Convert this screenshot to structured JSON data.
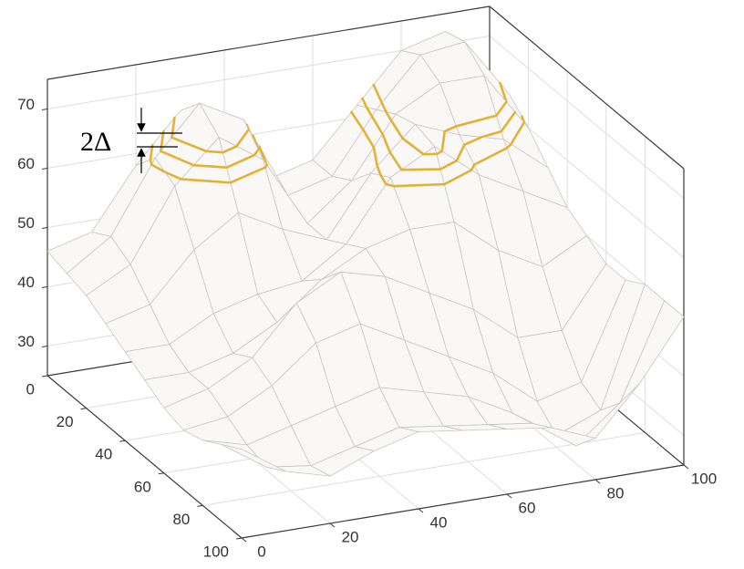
{
  "chart_data": {
    "type": "surface",
    "annotation": "2Δ",
    "x": [
      0,
      10,
      20,
      30,
      40,
      50,
      60,
      70,
      80,
      90,
      100
    ],
    "y": [
      0,
      10,
      20,
      30,
      40,
      50,
      60,
      70,
      80,
      90,
      100
    ],
    "z": [
      [
        46,
        48,
        58,
        66,
        64,
        52,
        54,
        62,
        70,
        72,
        62
      ],
      [
        45,
        50,
        62,
        70,
        66,
        52,
        54,
        64,
        72,
        73,
        63
      ],
      [
        44,
        48,
        60,
        67,
        62,
        50,
        56,
        66,
        70,
        70,
        60
      ],
      [
        42,
        44,
        52,
        57,
        53,
        50,
        60,
        67,
        64,
        62,
        56
      ],
      [
        40,
        40,
        44,
        46,
        47,
        52,
        62,
        66,
        60,
        56,
        52
      ],
      [
        38,
        38,
        40,
        44,
        50,
        54,
        56,
        56,
        50,
        46,
        50
      ],
      [
        36,
        38,
        42,
        50,
        54,
        52,
        48,
        44,
        38,
        38,
        48
      ],
      [
        35,
        36,
        40,
        46,
        48,
        44,
        40,
        36,
        30,
        32,
        48
      ],
      [
        36,
        34,
        36,
        38,
        40,
        38,
        36,
        32,
        27,
        30,
        50
      ],
      [
        38,
        33,
        32,
        34,
        36,
        35,
        34,
        33,
        28,
        34,
        50
      ],
      [
        40,
        35,
        33,
        36,
        38,
        37,
        36,
        35,
        32,
        40,
        50
      ]
    ],
    "mesh_color": "#c9c6c1",
    "surface_color": "#f9f8f6",
    "contour_levels": [
      61,
      63,
      65
    ],
    "contour_color": "#e2b235",
    "xlim": [
      0,
      100
    ],
    "ylim": [
      0,
      100
    ],
    "zlim": [
      25,
      75
    ],
    "xticks": [
      0,
      20,
      40,
      60,
      80,
      100
    ],
    "yticks": [
      0,
      20,
      40,
      60,
      80,
      100
    ],
    "zticks": [
      30,
      40,
      50,
      60,
      70
    ],
    "grid": true
  }
}
